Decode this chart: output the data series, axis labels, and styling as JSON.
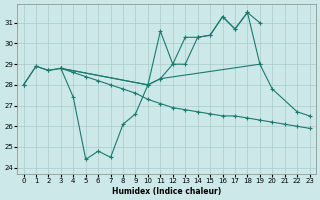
{
  "xlabel": "Humidex (Indice chaleur)",
  "background_color": "#cce8e8",
  "grid_color": "#aacccc",
  "line_color": "#1a7a6e",
  "xlim": [
    -0.5,
    23.5
  ],
  "ylim": [
    23.7,
    31.9
  ],
  "yticks": [
    24,
    25,
    26,
    27,
    28,
    29,
    30,
    31
  ],
  "xticks": [
    0,
    1,
    2,
    3,
    4,
    5,
    6,
    7,
    8,
    9,
    10,
    11,
    12,
    13,
    14,
    15,
    16,
    17,
    18,
    19,
    20,
    21,
    22,
    23
  ],
  "line_A_x": [
    0,
    1,
    2,
    3,
    4,
    5,
    6,
    7,
    8,
    9,
    10,
    11,
    19,
    20,
    22,
    23
  ],
  "line_A_y": [
    28.0,
    28.9,
    28.7,
    28.8,
    27.4,
    24.4,
    24.8,
    24.5,
    26.1,
    26.6,
    28.0,
    28.3,
    29.0,
    27.8,
    26.7,
    26.5
  ],
  "line_B_x": [
    0,
    1,
    2,
    3,
    4,
    5,
    6,
    7,
    8,
    9,
    10,
    11,
    12,
    13,
    14,
    15,
    16,
    17,
    18,
    19,
    20,
    21,
    22,
    23
  ],
  "line_B_y": [
    28.0,
    28.9,
    28.7,
    28.8,
    28.6,
    28.4,
    28.2,
    28.0,
    27.8,
    27.6,
    27.3,
    27.1,
    26.9,
    26.8,
    26.7,
    26.6,
    26.5,
    26.5,
    26.4,
    26.3,
    26.2,
    26.1,
    26.0,
    25.9
  ],
  "line_C_x": [
    3,
    10,
    11,
    12,
    13,
    14,
    15,
    16,
    17,
    18,
    19
  ],
  "line_C_y": [
    28.8,
    28.0,
    30.6,
    29.0,
    30.3,
    30.3,
    30.4,
    31.3,
    30.7,
    31.5,
    29.0
  ],
  "line_D_x": [
    3,
    10,
    11,
    12,
    13,
    14,
    15,
    16,
    17,
    18,
    19
  ],
  "line_D_y": [
    28.8,
    28.0,
    28.3,
    29.0,
    29.0,
    30.3,
    30.4,
    31.3,
    30.7,
    31.5,
    31.0
  ]
}
